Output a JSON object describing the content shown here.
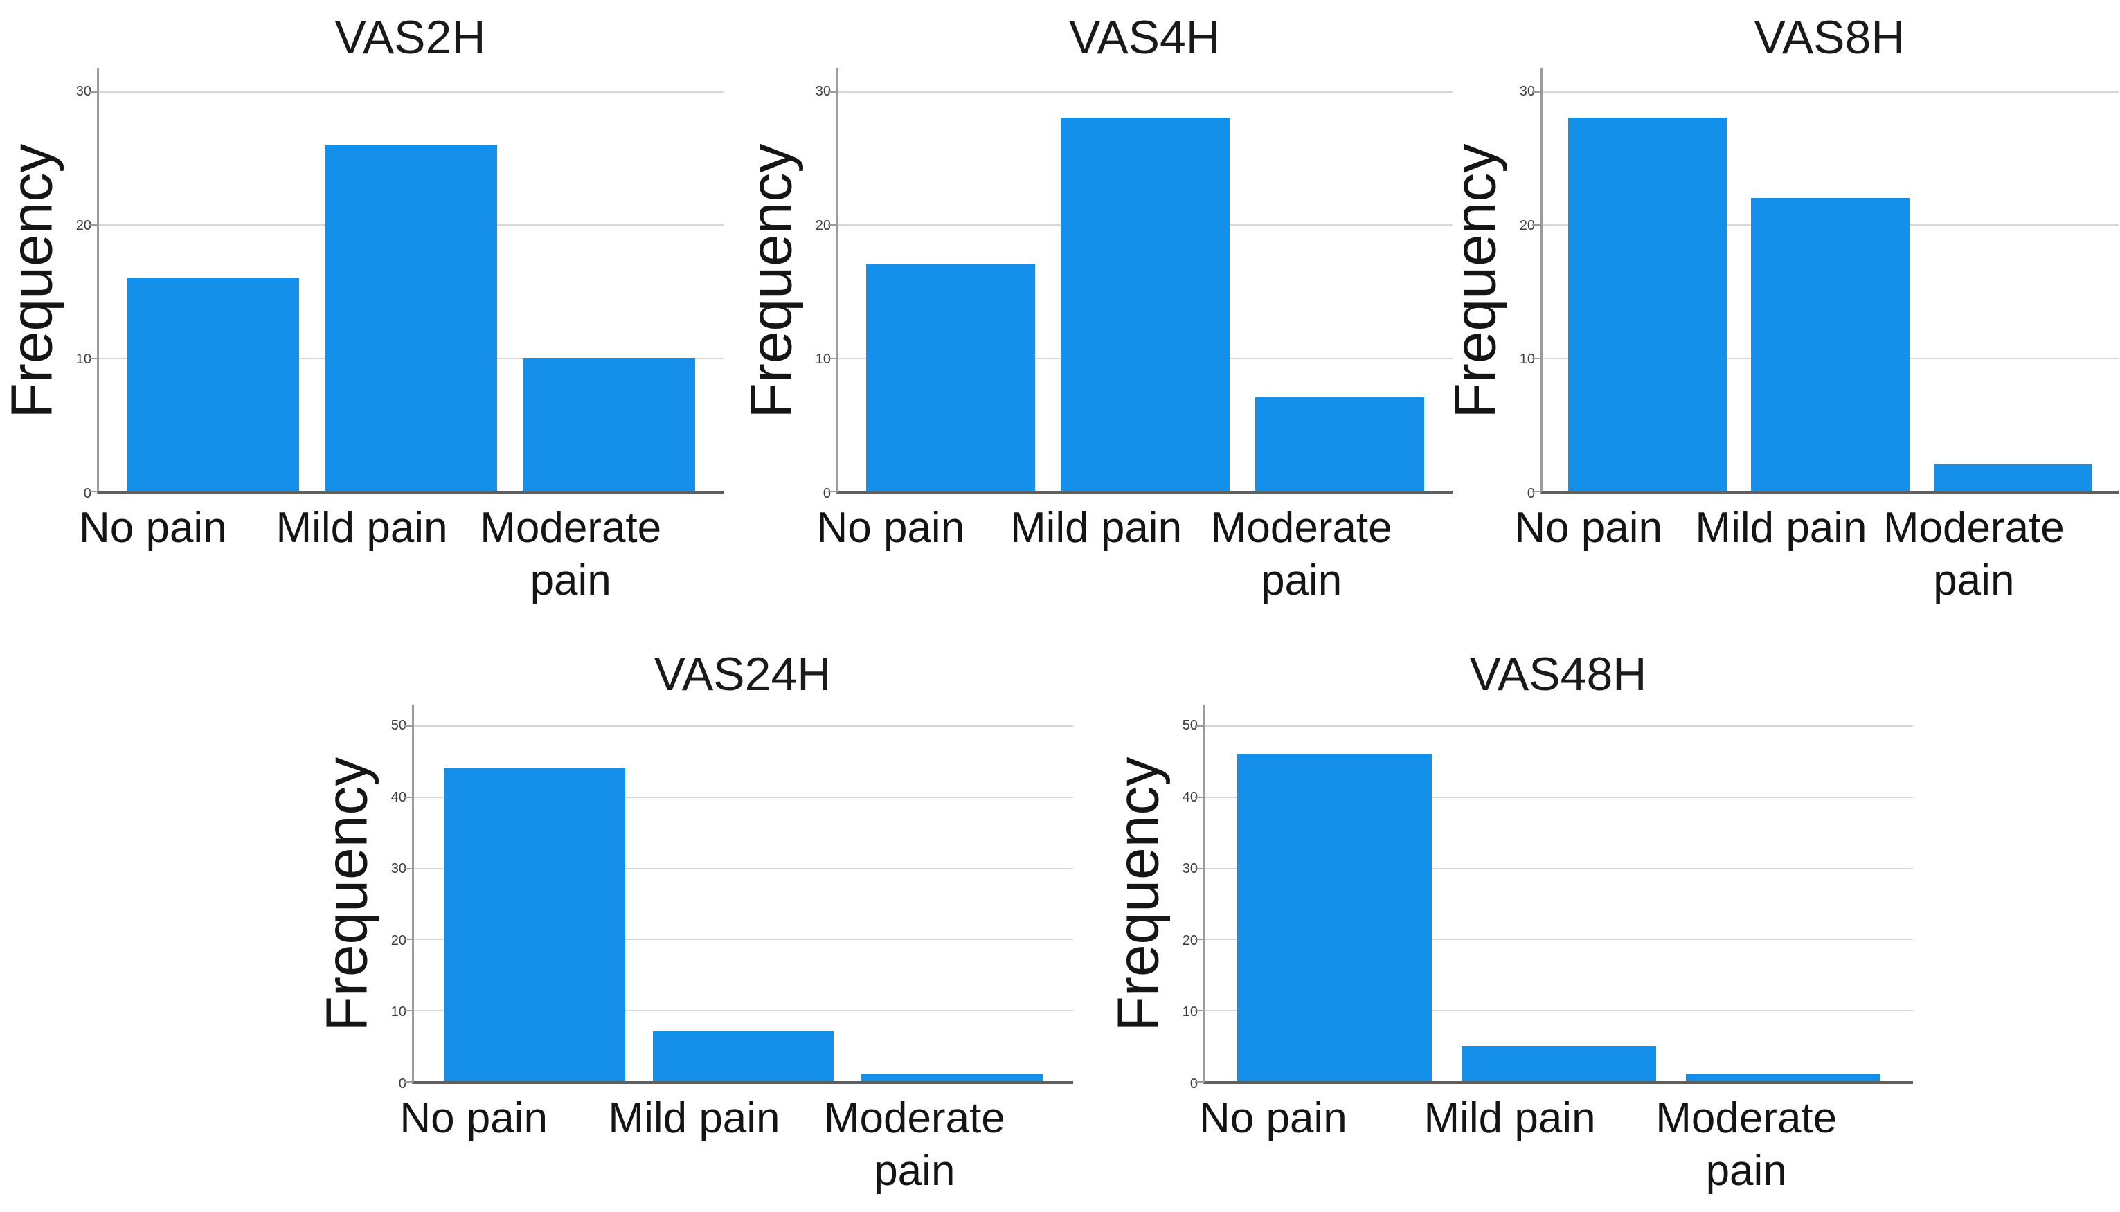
{
  "page": {
    "background": "#ffffff"
  },
  "colors": {
    "bar": "#1590EA",
    "gridline": "#D7D7D7",
    "y_axis": "#9B9B9B",
    "x_axis": "#5F5F5F",
    "tick_text": "#3C3C3C",
    "text": "#141414"
  },
  "chart_data": [
    {
      "type": "bar",
      "title": "VAS2H",
      "ylabel": "Frequency",
      "xlabel": "",
      "categories": [
        "No pain",
        "Mild pain",
        "Moderate pain"
      ],
      "values": [
        16,
        26,
        10
      ],
      "ylim": [
        0,
        30
      ],
      "yticks": [
        0,
        10,
        20,
        30
      ],
      "grid": true,
      "legend": "none"
    },
    {
      "type": "bar",
      "title": "VAS4H",
      "ylabel": "Frequency",
      "xlabel": "",
      "categories": [
        "No pain",
        "Mild pain",
        "Moderate pain"
      ],
      "values": [
        17,
        28,
        7
      ],
      "ylim": [
        0,
        30
      ],
      "yticks": [
        0,
        10,
        20,
        30
      ],
      "grid": true,
      "legend": "none"
    },
    {
      "type": "bar",
      "title": "VAS8H",
      "ylabel": "Frequency",
      "xlabel": "",
      "categories": [
        "No pain",
        "Mild pain",
        "Moderate pain"
      ],
      "values": [
        28,
        22,
        2
      ],
      "ylim": [
        0,
        30
      ],
      "yticks": [
        0,
        10,
        20,
        30
      ],
      "grid": true,
      "legend": "none"
    },
    {
      "type": "bar",
      "title": "VAS24H",
      "ylabel": "Frequency",
      "xlabel": "",
      "categories": [
        "No pain",
        "Mild pain",
        "Moderate pain"
      ],
      "values": [
        44,
        7,
        1
      ],
      "ylim": [
        0,
        50
      ],
      "yticks": [
        0,
        10,
        20,
        30,
        40,
        50
      ],
      "grid": true,
      "legend": "none"
    },
    {
      "type": "bar",
      "title": "VAS48H",
      "ylabel": "Frequency",
      "xlabel": "",
      "categories": [
        "No pain",
        "Mild pain",
        "Moderate pain"
      ],
      "values": [
        46,
        5,
        1
      ],
      "ylim": [
        0,
        50
      ],
      "yticks": [
        0,
        10,
        20,
        30,
        40,
        50
      ],
      "grid": true,
      "legend": "none"
    }
  ]
}
